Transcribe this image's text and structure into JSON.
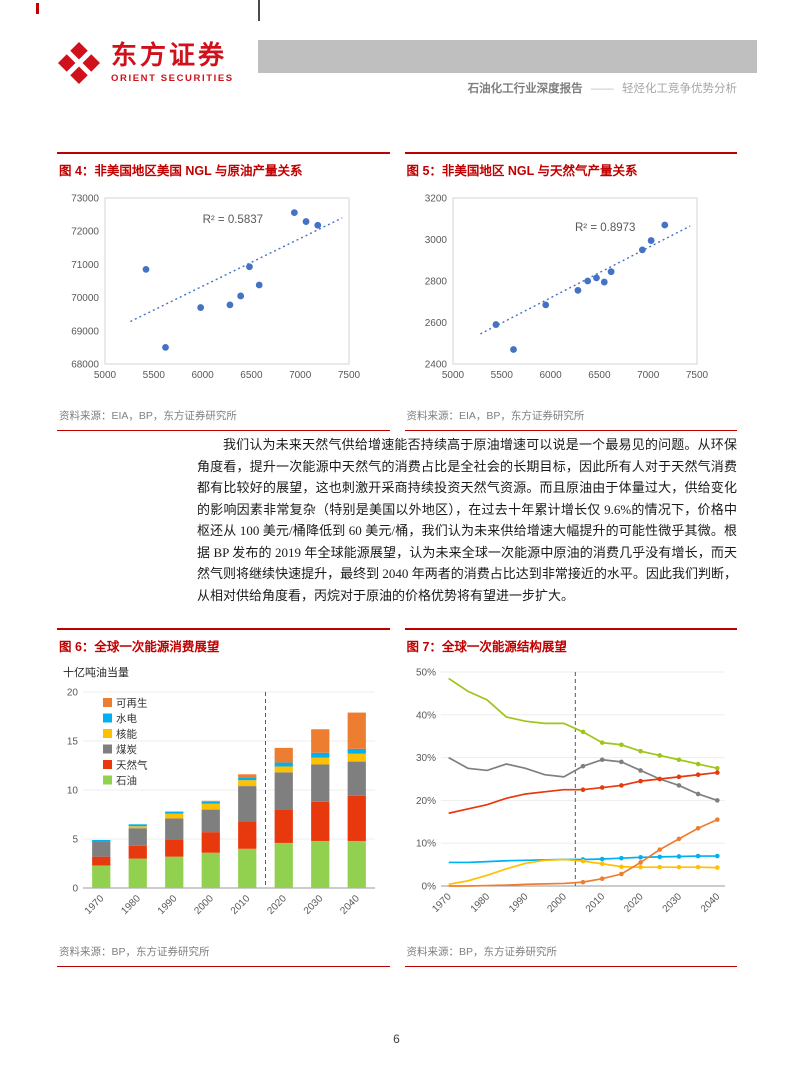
{
  "page": {
    "number": "6"
  },
  "theme": {
    "brand_red": "#C00000",
    "logo_red": "#D0111B",
    "header_bar_gray": "#BFBFBF",
    "source_text_gray": "#808080",
    "scatter_blue": "#4472C4"
  },
  "header": {
    "logo_cn": "东方证券",
    "logo_en": "ORIENT SECURITIES",
    "report_type": "石油化工行业深度报告",
    "separator": "——",
    "report_title": "轻烃化工竞争优势分析"
  },
  "figures": {
    "fig4": {
      "title": "图 4：非美国地区美国 NGL 与原油产量关系",
      "source": "资料来源：EIA，BP，东方证券研究所"
    },
    "fig5": {
      "title": "图 5：非美国地区 NGL 与天然气产量关系",
      "source": "资料来源：EIA，BP，东方证券研究所"
    },
    "fig6": {
      "title": "图 6：全球一次能源消费展望",
      "source": "资料来源：BP，东方证券研究所"
    },
    "fig7": {
      "title": "图 7：全球一次能源结构展望",
      "source": "资料来源：BP，东方证券研究所"
    }
  },
  "body": {
    "paragraph": "我们认为未来天然气供给增速能否持续高于原油增速可以说是一个最易见的问题。从环保角度看，提升一次能源中天然气的消费占比是全社会的长期目标，因此所有人对于天然气消费都有比较好的展望，这也刺激开采商持续投资天然气资源。而且原油由于体量过大，供给变化的影响因素非常复杂（特别是美国以外地区），在过去十年累计增长仅 9.6%的情况下，价格中枢还从 100 美元/桶降低到 60 美元/桶，我们认为未来供给增速大幅提升的可能性微乎其微。根据 BP 发布的 2019 年全球能源展望，认为未来全球一次能源中原油的消费几乎没有增长，而天然气则将继续快速提升，最终到 2040 年两者的消费占比达到非常接近的水平。因此我们判断，从相对供给角度看，丙烷对于原油的价格优势将有望进一步扩大。"
  },
  "chart_data": [
    {
      "id": "fig4",
      "type": "scatter",
      "title": "图 4：非美国地区美国 NGL 与原油产量关系",
      "xlabel": "",
      "ylabel": "",
      "xlim": [
        5000,
        7500
      ],
      "ylim": [
        68000,
        73000
      ],
      "xticks": [
        5000,
        5500,
        6000,
        6500,
        7000,
        7500
      ],
      "yticks": [
        68000,
        69000,
        70000,
        71000,
        72000,
        73000
      ],
      "points": [
        [
          5420,
          70850
        ],
        [
          5620,
          68500
        ],
        [
          5980,
          69700
        ],
        [
          6280,
          69780
        ],
        [
          6390,
          70050
        ],
        [
          6480,
          70930
        ],
        [
          6580,
          70380
        ],
        [
          6940,
          72560
        ],
        [
          7060,
          72290
        ],
        [
          7180,
          72180
        ]
      ],
      "trendline": [
        [
          5260,
          69280
        ],
        [
          7430,
          72400
        ]
      ],
      "r2_label": "R² = 0.5837",
      "r2_pos": [
        0.4,
        0.15
      ],
      "color": "#4472C4",
      "grid": false
    },
    {
      "id": "fig5",
      "type": "scatter",
      "title": "图 5：非美国地区 NGL 与天然气产量关系",
      "xlabel": "",
      "ylabel": "",
      "xlim": [
        5000,
        7500
      ],
      "ylim": [
        2400,
        3200
      ],
      "xticks": [
        5000,
        5500,
        6000,
        6500,
        7000,
        7500
      ],
      "yticks": [
        2400,
        2600,
        2800,
        3000,
        3200
      ],
      "points": [
        [
          5440,
          2590
        ],
        [
          5620,
          2470
        ],
        [
          5950,
          2685
        ],
        [
          6280,
          2755
        ],
        [
          6380,
          2800
        ],
        [
          6470,
          2815
        ],
        [
          6550,
          2795
        ],
        [
          6620,
          2845
        ],
        [
          6940,
          2950
        ],
        [
          7030,
          2995
        ],
        [
          7170,
          3070
        ]
      ],
      "trendline": [
        [
          5280,
          2545
        ],
        [
          7430,
          3065
        ]
      ],
      "r2_label": "R² = 0.8973",
      "r2_pos": [
        0.5,
        0.2
      ],
      "color": "#4472C4",
      "grid": false
    },
    {
      "id": "fig6",
      "type": "stacked_bar",
      "title": "图 6：全球一次能源消费展望",
      "unit_label": "十亿吨油当量",
      "categories": [
        "1970",
        "1980",
        "1990",
        "2000",
        "2010",
        "2020",
        "2030",
        "2040"
      ],
      "series": [
        {
          "name": "石油",
          "color": "#92D050",
          "values": [
            2.3,
            3.0,
            3.2,
            3.6,
            4.0,
            4.6,
            4.8,
            4.8
          ]
        },
        {
          "name": "天然气",
          "color": "#E8380D",
          "values": [
            0.9,
            1.3,
            1.7,
            2.1,
            2.8,
            3.4,
            4.0,
            4.6
          ]
        },
        {
          "name": "煤炭",
          "color": "#7F7F7F",
          "values": [
            1.5,
            1.8,
            2.2,
            2.3,
            3.6,
            3.8,
            3.8,
            3.5
          ]
        },
        {
          "name": "核能",
          "color": "#FFC000",
          "values": [
            0.0,
            0.2,
            0.5,
            0.6,
            0.6,
            0.6,
            0.7,
            0.8
          ]
        },
        {
          "name": "水电",
          "color": "#00B0F0",
          "values": [
            0.2,
            0.2,
            0.2,
            0.2,
            0.3,
            0.4,
            0.5,
            0.5
          ]
        },
        {
          "name": "可再生",
          "color": "#ED7D31",
          "values": [
            0.0,
            0.0,
            0.0,
            0.1,
            0.3,
            1.5,
            2.4,
            3.7
          ]
        }
      ],
      "ylim": [
        0,
        20
      ],
      "yticks": [
        0,
        5,
        10,
        15,
        20
      ],
      "divider_after_index": 4,
      "legend_position": "top-left",
      "grid": true
    },
    {
      "id": "fig7",
      "type": "line",
      "title": "图 7：全球一次能源结构展望",
      "x": [
        1970,
        1975,
        1980,
        1985,
        1990,
        1995,
        2000,
        2005,
        2010,
        2015,
        2020,
        2025,
        2030,
        2035,
        2040
      ],
      "series": [
        {
          "name": "石油",
          "color": "#9FC519",
          "values": [
            48.5,
            45.5,
            43.5,
            39.5,
            38.5,
            38.0,
            38.0,
            36.0,
            33.5,
            33.0,
            31.5,
            30.5,
            29.5,
            28.5,
            27.5
          ]
        },
        {
          "name": "煤炭",
          "color": "#7F7F7F",
          "values": [
            30.0,
            27.5,
            27.0,
            28.5,
            27.5,
            26.0,
            25.5,
            28.0,
            29.5,
            29.0,
            27.0,
            25.0,
            23.5,
            21.5,
            20.0
          ]
        },
        {
          "name": "天然气",
          "color": "#E8380D",
          "values": [
            17.0,
            18.0,
            19.0,
            20.5,
            21.5,
            22.0,
            22.5,
            22.5,
            23.0,
            23.5,
            24.5,
            25.0,
            25.5,
            26.0,
            26.5
          ]
        },
        {
          "name": "水电",
          "color": "#00B0F0",
          "values": [
            5.5,
            5.5,
            5.7,
            5.9,
            6.0,
            6.1,
            6.2,
            6.2,
            6.3,
            6.5,
            6.7,
            6.8,
            6.9,
            7.0,
            7.0
          ]
        },
        {
          "name": "核能",
          "color": "#FFC000",
          "values": [
            0.4,
            1.2,
            2.5,
            4.0,
            5.3,
            6.0,
            6.2,
            5.8,
            5.2,
            4.5,
            4.4,
            4.4,
            4.4,
            4.4,
            4.3
          ]
        },
        {
          "name": "可再生",
          "color": "#ED7D31",
          "values": [
            0.0,
            0.0,
            0.1,
            0.2,
            0.4,
            0.5,
            0.6,
            0.9,
            1.7,
            2.8,
            5.5,
            8.5,
            11.0,
            13.5,
            15.5
          ]
        }
      ],
      "xlim": [
        1968,
        2042
      ],
      "ylim": [
        0,
        50
      ],
      "yticks": [
        0,
        10,
        20,
        30,
        40,
        50
      ],
      "xticks": [
        1970,
        1980,
        1990,
        2000,
        2010,
        2020,
        2030,
        2040
      ],
      "divider_x": 2003,
      "marker_from": 2005,
      "grid": true,
      "legend_position": "none"
    }
  ]
}
